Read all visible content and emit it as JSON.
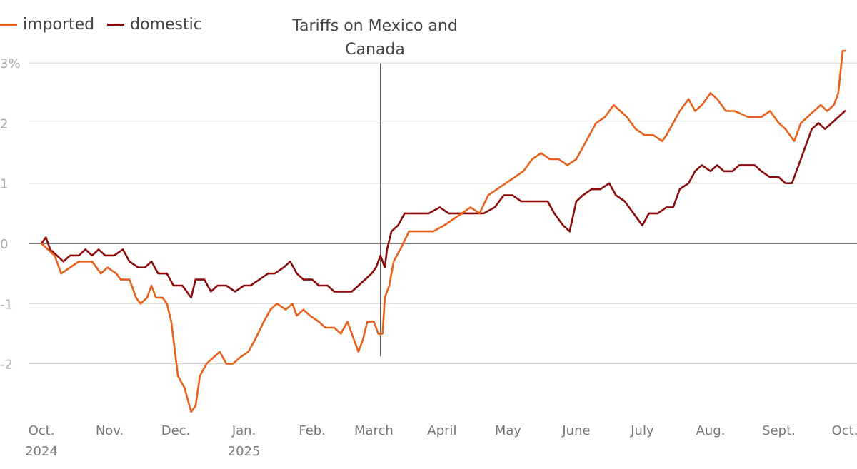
{
  "legend": [
    {
      "label": "imported",
      "color": "#e8611a"
    },
    {
      "label": "domestic",
      "color": "#8b0a0a"
    }
  ],
  "annotation": {
    "line1": "Tariffs on Mexico and",
    "line2": "Canada",
    "x": "March 4, 2025"
  },
  "chart_data": {
    "type": "line",
    "title": "",
    "xlabel": "",
    "ylabel": "",
    "ylim": [
      -3,
      3
    ],
    "xlim": [
      "2024-10-01",
      "2025-10-01"
    ],
    "y_ticks": [
      {
        "value": 3,
        "label": "3%"
      },
      {
        "value": 2,
        "label": "2"
      },
      {
        "value": 1,
        "label": "1"
      },
      {
        "value": 0,
        "label": "0"
      },
      {
        "value": -1,
        "label": "-1"
      },
      {
        "value": -2,
        "label": "-2"
      }
    ],
    "x_ticks": [
      {
        "date": "2024-10-01",
        "label": "Oct.",
        "label2": "2024"
      },
      {
        "date": "2024-11-01",
        "label": "Nov.",
        "label2": ""
      },
      {
        "date": "2024-12-01",
        "label": "Dec.",
        "label2": ""
      },
      {
        "date": "2025-01-01",
        "label": "Jan.",
        "label2": "2025"
      },
      {
        "date": "2025-02-01",
        "label": "Feb.",
        "label2": ""
      },
      {
        "date": "2025-03-01",
        "label": "March",
        "label2": ""
      },
      {
        "date": "2025-04-01",
        "label": "April",
        "label2": ""
      },
      {
        "date": "2025-05-01",
        "label": "May",
        "label2": ""
      },
      {
        "date": "2025-06-01",
        "label": "June",
        "label2": ""
      },
      {
        "date": "2025-07-01",
        "label": "July",
        "label2": ""
      },
      {
        "date": "2025-08-01",
        "label": "Aug.",
        "label2": ""
      },
      {
        "date": "2025-09-01",
        "label": "Sept.",
        "label2": ""
      },
      {
        "date": "2025-10-01",
        "label": "Oct.",
        "label2": ""
      }
    ],
    "grid": true,
    "legend_position": "top-left",
    "series": [
      {
        "name": "imported",
        "color": "#e8611a",
        "points": [
          [
            "2024-10-01",
            0
          ],
          [
            "2024-10-04",
            -0.1
          ],
          [
            "2024-10-07",
            -0.2
          ],
          [
            "2024-10-10",
            -0.5
          ],
          [
            "2024-10-14",
            -0.4
          ],
          [
            "2024-10-18",
            -0.3
          ],
          [
            "2024-10-24",
            -0.3
          ],
          [
            "2024-10-28",
            -0.5
          ],
          [
            "2024-10-31",
            -0.4
          ],
          [
            "2024-11-04",
            -0.5
          ],
          [
            "2024-11-06",
            -0.6
          ],
          [
            "2024-11-10",
            -0.6
          ],
          [
            "2024-11-13",
            -0.9
          ],
          [
            "2024-11-15",
            -1.0
          ],
          [
            "2024-11-18",
            -0.9
          ],
          [
            "2024-11-20",
            -0.7
          ],
          [
            "2024-11-22",
            -0.9
          ],
          [
            "2024-11-25",
            -0.9
          ],
          [
            "2024-11-27",
            -1.0
          ],
          [
            "2024-11-29",
            -1.3
          ],
          [
            "2024-12-02",
            -2.2
          ],
          [
            "2024-12-05",
            -2.4
          ],
          [
            "2024-12-08",
            -2.8
          ],
          [
            "2024-12-10",
            -2.7
          ],
          [
            "2024-12-12",
            -2.2
          ],
          [
            "2024-12-15",
            -2.0
          ],
          [
            "2024-12-18",
            -1.9
          ],
          [
            "2024-12-21",
            -1.8
          ],
          [
            "2024-12-24",
            -2.0
          ],
          [
            "2024-12-27",
            -2.0
          ],
          [
            "2024-12-30",
            -1.9
          ],
          [
            "2025-01-03",
            -1.8
          ],
          [
            "2025-01-06",
            -1.6
          ],
          [
            "2025-01-10",
            -1.3
          ],
          [
            "2025-01-13",
            -1.1
          ],
          [
            "2025-01-16",
            -1.0
          ],
          [
            "2025-01-20",
            -1.1
          ],
          [
            "2025-01-23",
            -1.0
          ],
          [
            "2025-01-25",
            -1.2
          ],
          [
            "2025-01-28",
            -1.1
          ],
          [
            "2025-01-31",
            -1.2
          ],
          [
            "2025-02-04",
            -1.3
          ],
          [
            "2025-02-07",
            -1.4
          ],
          [
            "2025-02-11",
            -1.4
          ],
          [
            "2025-02-14",
            -1.5
          ],
          [
            "2025-02-17",
            -1.3
          ],
          [
            "2025-02-20",
            -1.6
          ],
          [
            "2025-02-22",
            -1.8
          ],
          [
            "2025-02-24",
            -1.6
          ],
          [
            "2025-02-26",
            -1.3
          ],
          [
            "2025-03-01",
            -1.3
          ],
          [
            "2025-03-03",
            -1.5
          ],
          [
            "2025-03-05",
            -1.5
          ],
          [
            "2025-03-06",
            -0.9
          ],
          [
            "2025-03-08",
            -0.7
          ],
          [
            "2025-03-10",
            -0.3
          ],
          [
            "2025-03-13",
            -0.1
          ],
          [
            "2025-03-17",
            0.2
          ],
          [
            "2025-03-24",
            0.2
          ],
          [
            "2025-03-28",
            0.2
          ],
          [
            "2025-04-02",
            0.3
          ],
          [
            "2025-04-06",
            0.4
          ],
          [
            "2025-04-10",
            0.5
          ],
          [
            "2025-04-14",
            0.6
          ],
          [
            "2025-04-18",
            0.5
          ],
          [
            "2025-04-22",
            0.8
          ],
          [
            "2025-04-26",
            0.9
          ],
          [
            "2025-04-30",
            1.0
          ],
          [
            "2025-05-04",
            1.1
          ],
          [
            "2025-05-08",
            1.2
          ],
          [
            "2025-05-12",
            1.4
          ],
          [
            "2025-05-16",
            1.5
          ],
          [
            "2025-05-20",
            1.4
          ],
          [
            "2025-05-24",
            1.4
          ],
          [
            "2025-05-28",
            1.3
          ],
          [
            "2025-06-01",
            1.4
          ],
          [
            "2025-06-04",
            1.6
          ],
          [
            "2025-06-07",
            1.8
          ],
          [
            "2025-06-10",
            2.0
          ],
          [
            "2025-06-14",
            2.1
          ],
          [
            "2025-06-18",
            2.3
          ],
          [
            "2025-06-21",
            2.2
          ],
          [
            "2025-06-24",
            2.1
          ],
          [
            "2025-06-28",
            1.9
          ],
          [
            "2025-07-02",
            1.8
          ],
          [
            "2025-07-06",
            1.8
          ],
          [
            "2025-07-10",
            1.7
          ],
          [
            "2025-07-12",
            1.8
          ],
          [
            "2025-07-15",
            2.0
          ],
          [
            "2025-07-18",
            2.2
          ],
          [
            "2025-07-22",
            2.4
          ],
          [
            "2025-07-25",
            2.2
          ],
          [
            "2025-07-28",
            2.3
          ],
          [
            "2025-08-01",
            2.5
          ],
          [
            "2025-08-04",
            2.4
          ],
          [
            "2025-08-08",
            2.2
          ],
          [
            "2025-08-12",
            2.2
          ],
          [
            "2025-08-18",
            2.1
          ],
          [
            "2025-08-24",
            2.1
          ],
          [
            "2025-08-28",
            2.2
          ],
          [
            "2025-09-01",
            2.0
          ],
          [
            "2025-09-04",
            1.9
          ],
          [
            "2025-09-08",
            1.7
          ],
          [
            "2025-09-11",
            2.0
          ],
          [
            "2025-09-14",
            2.1
          ],
          [
            "2025-09-17",
            2.2
          ],
          [
            "2025-09-20",
            2.3
          ],
          [
            "2025-09-23",
            2.2
          ],
          [
            "2025-09-26",
            2.3
          ],
          [
            "2025-09-28",
            2.5
          ],
          [
            "2025-09-30",
            3.2
          ],
          [
            "2025-10-01",
            3.2
          ]
        ]
      },
      {
        "name": "domestic",
        "color": "#8b0a0a",
        "points": [
          [
            "2024-10-01",
            0
          ],
          [
            "2024-10-03",
            0.1
          ],
          [
            "2024-10-05",
            -0.1
          ],
          [
            "2024-10-08",
            -0.2
          ],
          [
            "2024-10-11",
            -0.3
          ],
          [
            "2024-10-14",
            -0.2
          ],
          [
            "2024-10-18",
            -0.2
          ],
          [
            "2024-10-21",
            -0.1
          ],
          [
            "2024-10-24",
            -0.2
          ],
          [
            "2024-10-27",
            -0.1
          ],
          [
            "2024-10-30",
            -0.2
          ],
          [
            "2024-11-03",
            -0.2
          ],
          [
            "2024-11-07",
            -0.1
          ],
          [
            "2024-11-10",
            -0.3
          ],
          [
            "2024-11-14",
            -0.4
          ],
          [
            "2024-11-17",
            -0.4
          ],
          [
            "2024-11-20",
            -0.3
          ],
          [
            "2024-11-23",
            -0.5
          ],
          [
            "2024-11-27",
            -0.5
          ],
          [
            "2024-11-30",
            -0.7
          ],
          [
            "2024-12-04",
            -0.7
          ],
          [
            "2024-12-08",
            -0.9
          ],
          [
            "2024-12-10",
            -0.6
          ],
          [
            "2024-12-14",
            -0.6
          ],
          [
            "2024-12-17",
            -0.8
          ],
          [
            "2024-12-20",
            -0.7
          ],
          [
            "2024-12-24",
            -0.7
          ],
          [
            "2024-12-28",
            -0.8
          ],
          [
            "2025-01-01",
            -0.7
          ],
          [
            "2025-01-04",
            -0.7
          ],
          [
            "2025-01-08",
            -0.6
          ],
          [
            "2025-01-12",
            -0.5
          ],
          [
            "2025-01-15",
            -0.5
          ],
          [
            "2025-01-19",
            -0.4
          ],
          [
            "2025-01-22",
            -0.3
          ],
          [
            "2025-01-25",
            -0.5
          ],
          [
            "2025-01-28",
            -0.6
          ],
          [
            "2025-02-01",
            -0.6
          ],
          [
            "2025-02-04",
            -0.7
          ],
          [
            "2025-02-08",
            -0.7
          ],
          [
            "2025-02-11",
            -0.8
          ],
          [
            "2025-02-15",
            -0.8
          ],
          [
            "2025-02-19",
            -0.8
          ],
          [
            "2025-02-22",
            -0.7
          ],
          [
            "2025-02-25",
            -0.6
          ],
          [
            "2025-02-28",
            -0.5
          ],
          [
            "2025-03-02",
            -0.4
          ],
          [
            "2025-03-04",
            -0.2
          ],
          [
            "2025-03-06",
            -0.4
          ],
          [
            "2025-03-07",
            -0.1
          ],
          [
            "2025-03-09",
            0.2
          ],
          [
            "2025-03-12",
            0.3
          ],
          [
            "2025-03-15",
            0.5
          ],
          [
            "2025-03-20",
            0.5
          ],
          [
            "2025-03-26",
            0.5
          ],
          [
            "2025-03-31",
            0.6
          ],
          [
            "2025-04-04",
            0.5
          ],
          [
            "2025-04-10",
            0.5
          ],
          [
            "2025-04-15",
            0.5
          ],
          [
            "2025-04-20",
            0.5
          ],
          [
            "2025-04-25",
            0.6
          ],
          [
            "2025-04-29",
            0.8
          ],
          [
            "2025-05-03",
            0.8
          ],
          [
            "2025-05-07",
            0.7
          ],
          [
            "2025-05-11",
            0.7
          ],
          [
            "2025-05-15",
            0.7
          ],
          [
            "2025-05-19",
            0.7
          ],
          [
            "2025-05-22",
            0.5
          ],
          [
            "2025-05-26",
            0.3
          ],
          [
            "2025-05-29",
            0.2
          ],
          [
            "2025-06-01",
            0.7
          ],
          [
            "2025-06-04",
            0.8
          ],
          [
            "2025-06-08",
            0.9
          ],
          [
            "2025-06-12",
            0.9
          ],
          [
            "2025-06-16",
            1.0
          ],
          [
            "2025-06-19",
            0.8
          ],
          [
            "2025-06-23",
            0.7
          ],
          [
            "2025-06-27",
            0.5
          ],
          [
            "2025-07-01",
            0.3
          ],
          [
            "2025-07-04",
            0.5
          ],
          [
            "2025-07-08",
            0.5
          ],
          [
            "2025-07-12",
            0.6
          ],
          [
            "2025-07-15",
            0.6
          ],
          [
            "2025-07-18",
            0.9
          ],
          [
            "2025-07-22",
            1.0
          ],
          [
            "2025-07-25",
            1.2
          ],
          [
            "2025-07-28",
            1.3
          ],
          [
            "2025-08-01",
            1.2
          ],
          [
            "2025-08-04",
            1.3
          ],
          [
            "2025-08-07",
            1.2
          ],
          [
            "2025-08-11",
            1.2
          ],
          [
            "2025-08-14",
            1.3
          ],
          [
            "2025-08-18",
            1.3
          ],
          [
            "2025-08-21",
            1.3
          ],
          [
            "2025-08-24",
            1.2
          ],
          [
            "2025-08-28",
            1.1
          ],
          [
            "2025-09-01",
            1.1
          ],
          [
            "2025-09-04",
            1.0
          ],
          [
            "2025-09-07",
            1.0
          ],
          [
            "2025-09-10",
            1.3
          ],
          [
            "2025-09-13",
            1.6
          ],
          [
            "2025-09-16",
            1.9
          ],
          [
            "2025-09-19",
            2.0
          ],
          [
            "2025-09-22",
            1.9
          ],
          [
            "2025-09-25",
            2.0
          ],
          [
            "2025-09-28",
            2.1
          ],
          [
            "2025-10-01",
            2.2
          ]
        ]
      }
    ]
  }
}
